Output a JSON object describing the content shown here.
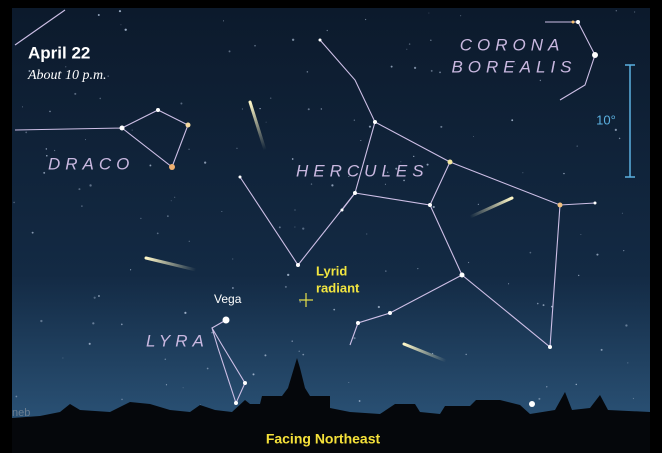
{
  "header": {
    "date": "April 22",
    "time": "About 10 p.m."
  },
  "labels": {
    "corona": [
      "CORONA",
      "BOREALIS"
    ],
    "scale": "10°",
    "draco": "DRACO",
    "hercules": "HERCULES",
    "radiant": [
      "Lyrid",
      "radiant"
    ],
    "vega": "Vega",
    "lyra": "LYRA",
    "edge": "neb"
  },
  "footer": "Facing Northeast"
}
